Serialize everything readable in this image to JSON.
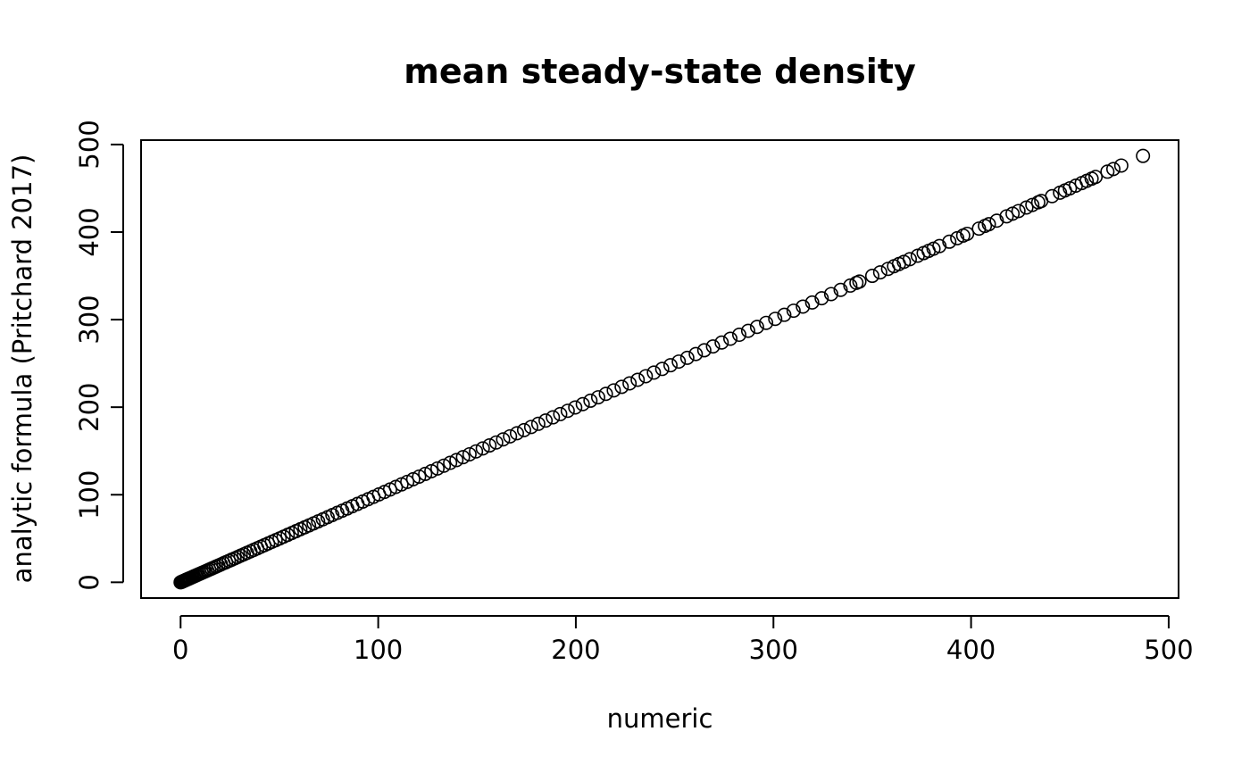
{
  "chart_data": {
    "type": "scatter",
    "title": "mean steady-state density",
    "xlabel": "numeric",
    "ylabel": "analytic formula (Pritchard 2017)",
    "xlim": [
      -20,
      505
    ],
    "ylim": [
      -18,
      505
    ],
    "xticks": [
      0,
      100,
      200,
      300,
      400,
      500
    ],
    "yticks": [
      0,
      100,
      200,
      300,
      400,
      500
    ],
    "marker": "open-circle",
    "grid": false,
    "points_x": [
      0,
      0.3,
      0.6,
      0.9,
      1.2,
      1.5,
      1.8,
      2.2,
      2.6,
      3.0,
      3.5,
      4.0,
      4.5,
      5.0,
      5.6,
      6.2,
      6.8,
      7.5,
      8.2,
      9.0,
      9.8,
      10.7,
      11.6,
      12.5,
      13.5,
      14.5,
      15.6,
      16.7,
      17.9,
      19.1,
      20.4,
      21.7,
      23,
      24.4,
      25.8,
      27.3,
      28.8,
      30.4,
      32,
      33.6,
      35.3,
      37,
      38.8,
      40.6,
      42.4,
      44.3,
      46.2,
      48.1,
      50.1,
      52.1,
      54.2,
      56.3,
      58.4,
      60.6,
      62.8,
      65,
      67.3,
      69.6,
      72,
      74.4,
      76.8,
      79.3,
      81.8,
      84.3,
      86.9,
      89.5,
      92.2,
      94.9,
      97.6,
      100.4,
      103.2,
      106,
      108.9,
      111.8,
      114.7,
      117.7,
      120.7,
      123.8,
      126.9,
      130,
      133.2,
      136.4,
      139.6,
      142.9,
      146.2,
      149.5,
      152.9,
      156.3,
      159.7,
      163.2,
      166.7,
      170.2,
      173.8,
      177.4,
      181,
      184.7,
      188.4,
      192.1,
      195.9,
      199.7,
      203.5,
      207.4,
      211.3,
      215.2,
      219.2,
      223.2,
      227.2,
      231.3,
      235.4,
      239.5,
      243.7,
      247.9,
      252.1,
      256.4,
      260.7,
      265,
      269.4,
      273.8,
      278.2,
      282.7,
      287.2,
      291.7,
      296.3,
      300.9,
      305.5,
      310.2,
      314.9,
      319.6,
      324.4,
      329.2,
      334,
      338.9,
      342,
      343.5,
      350,
      354,
      358,
      361,
      363.5,
      366,
      369,
      373,
      376,
      378.5,
      381,
      384,
      389,
      393,
      396,
      398,
      404,
      407,
      409,
      413,
      418,
      421,
      424,
      428,
      431,
      434,
      435.5,
      441,
      445,
      447.5,
      450,
      453,
      456,
      458.5,
      461,
      463,
      469,
      472,
      476,
      487
    ],
    "points_y": [
      0,
      0.3,
      0.6,
      0.9,
      1.2,
      1.5,
      1.8,
      2.2,
      2.6,
      3.0,
      3.5,
      4.0,
      4.5,
      5.0,
      5.6,
      6.2,
      6.8,
      7.5,
      8.2,
      9.0,
      9.8,
      10.7,
      11.6,
      12.5,
      13.5,
      14.5,
      15.6,
      16.7,
      17.9,
      19.1,
      20.4,
      21.7,
      23,
      24.4,
      25.8,
      27.3,
      28.8,
      30.4,
      32,
      33.6,
      35.3,
      37,
      38.8,
      40.6,
      42.4,
      44.3,
      46.2,
      48.1,
      50.1,
      52.1,
      54.2,
      56.3,
      58.4,
      60.6,
      62.8,
      65,
      67.3,
      69.6,
      72,
      74.4,
      76.8,
      79.3,
      81.8,
      84.3,
      86.9,
      89.5,
      92.2,
      94.9,
      97.6,
      100.4,
      103.2,
      106,
      108.9,
      111.8,
      114.7,
      117.7,
      120.7,
      123.8,
      126.9,
      130,
      133.2,
      136.4,
      139.6,
      142.9,
      146.2,
      149.5,
      152.9,
      156.3,
      159.7,
      163.2,
      166.7,
      170.2,
      173.8,
      177.4,
      181,
      184.7,
      188.4,
      192.1,
      195.9,
      199.7,
      203.5,
      207.4,
      211.3,
      215.2,
      219.2,
      223.2,
      227.2,
      231.3,
      235.4,
      239.5,
      243.7,
      247.9,
      252.1,
      256.4,
      260.7,
      265,
      269.4,
      273.8,
      278.2,
      282.7,
      287.2,
      291.7,
      296.3,
      300.9,
      305.5,
      310.2,
      314.9,
      319.6,
      324.4,
      329.2,
      334,
      338.9,
      342,
      343.5,
      350,
      354,
      358,
      361,
      363.5,
      366,
      369,
      373,
      376,
      378.5,
      381,
      384,
      389,
      393,
      396,
      398,
      404,
      407,
      409,
      413,
      418,
      421,
      424,
      428,
      431,
      434,
      435.5,
      441,
      445,
      447.5,
      450,
      453,
      456,
      458.5,
      461,
      463,
      469,
      472,
      476,
      487
    ]
  }
}
